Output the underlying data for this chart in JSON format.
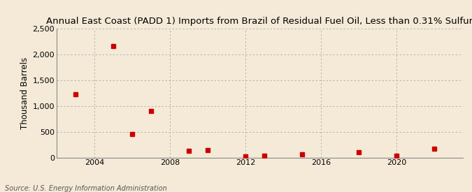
{
  "title": "Annual East Coast (PADD 1) Imports from Brazil of Residual Fuel Oil, Less than 0.31% Sulfur",
  "ylabel": "Thousand Barrels",
  "source": "Source: U.S. Energy Information Administration",
  "background_color": "#f5ead8",
  "marker_color": "#cc0000",
  "xlim": [
    2002.0,
    2023.5
  ],
  "ylim": [
    0,
    2500
  ],
  "yticks": [
    0,
    500,
    1000,
    1500,
    2000,
    2500
  ],
  "ytick_labels": [
    "0",
    "500",
    "1,000",
    "1,500",
    "2,000",
    "2,500"
  ],
  "xticks": [
    2004,
    2008,
    2012,
    2016,
    2020
  ],
  "data_x": [
    2003,
    2005,
    2006,
    2007,
    2009,
    2010,
    2012,
    2013,
    2015,
    2018,
    2020,
    2022
  ],
  "data_y": [
    1230,
    2170,
    450,
    900,
    130,
    145,
    15,
    30,
    60,
    105,
    40,
    175
  ],
  "title_fontsize": 9.5,
  "ylabel_fontsize": 8.5,
  "tick_fontsize": 8,
  "source_fontsize": 7
}
